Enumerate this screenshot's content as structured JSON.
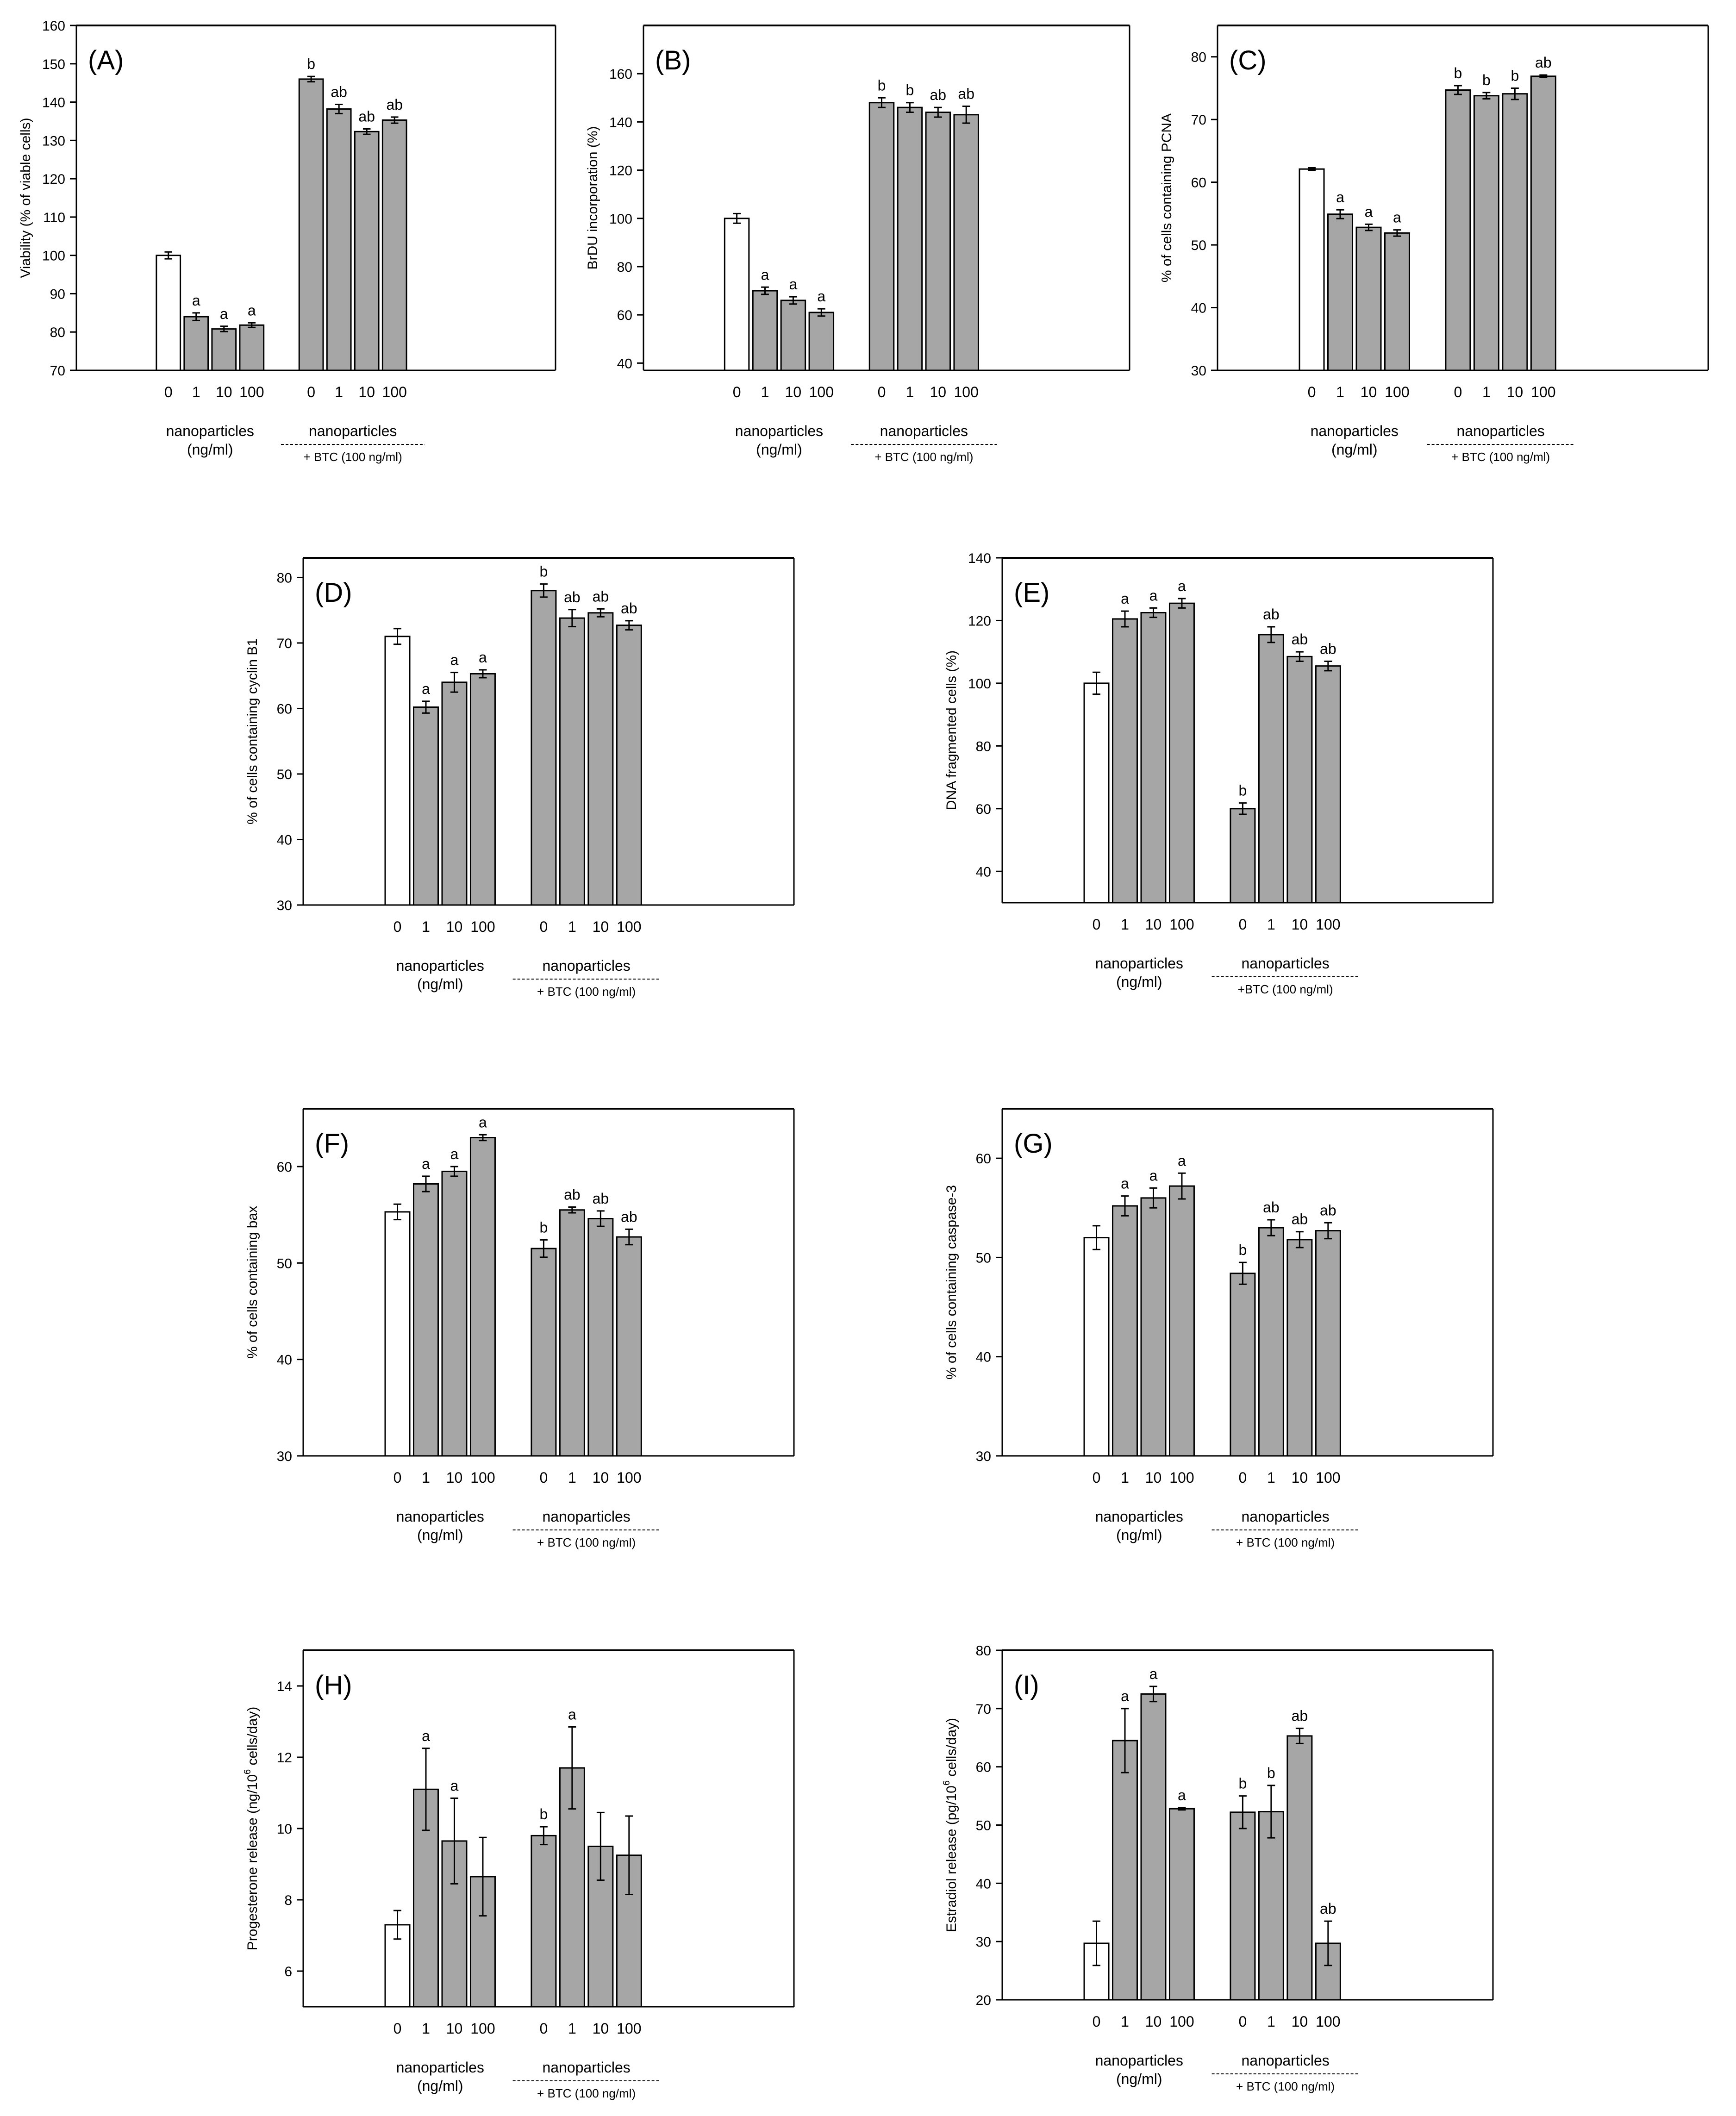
{
  "figure": {
    "description_note": "",
    "panels": [
      {
        "id": "A",
        "label": "(A)"
      },
      {
        "id": "B",
        "label": "(B)"
      },
      {
        "id": "C",
        "label": "(C)"
      },
      {
        "id": "D",
        "label": "(D)"
      },
      {
        "id": "E",
        "label": "(E)"
      },
      {
        "id": "F",
        "label": "(F)"
      },
      {
        "id": "G",
        "label": "(G)"
      },
      {
        "id": "H",
        "label": "(H)"
      },
      {
        "id": "I",
        "label": "(I)"
      }
    ]
  },
  "chart_data": [
    {
      "panel": "(A)",
      "type": "bar",
      "ylabel": "Viability (% of viable cells)",
      "ylim": [
        70,
        160
      ],
      "yticks": [
        70,
        80,
        90,
        100,
        110,
        120,
        130,
        140,
        150,
        160
      ],
      "categories": [
        "0",
        "1",
        "10",
        "100",
        "0",
        "1",
        "10",
        "100"
      ],
      "values": [
        100,
        84,
        80.8,
        81.8,
        146,
        138.2,
        132.3,
        135.3
      ],
      "errors": [
        0.9,
        1.0,
        0.7,
        0.6,
        0.7,
        1.2,
        0.7,
        0.8
      ],
      "letters": [
        "",
        "a",
        "a",
        "a",
        "b",
        "ab",
        "ab",
        "ab"
      ],
      "fills": [
        "#ffffff",
        "#a6a6a6",
        "#a6a6a6",
        "#a6a6a6",
        "#a6a6a6",
        "#a6a6a6",
        "#a6a6a6",
        "#a6a6a6"
      ],
      "group1_label": "nanoparticles",
      "group1_sub": "(ng/ml)",
      "group2_label": "nanoparticles",
      "group2_sub": "+ BTC (100 ng/ml)"
    },
    {
      "panel": "(B)",
      "type": "bar",
      "ylabel": "BrDU incorporation (%)",
      "ylim": [
        37,
        180
      ],
      "yticks": [
        40,
        60,
        80,
        100,
        120,
        140,
        160
      ],
      "categories": [
        "0",
        "1",
        "10",
        "100",
        "0",
        "1",
        "10",
        "100"
      ],
      "values": [
        100,
        70,
        66,
        61,
        148,
        146,
        144,
        143
      ],
      "errors": [
        2.0,
        1.5,
        1.5,
        1.5,
        2.0,
        2.0,
        2.0,
        3.5
      ],
      "letters": [
        "",
        "a",
        "a",
        "a",
        "b",
        "b",
        "ab",
        "ab"
      ],
      "fills": [
        "#ffffff",
        "#a6a6a6",
        "#a6a6a6",
        "#a6a6a6",
        "#a6a6a6",
        "#a6a6a6",
        "#a6a6a6",
        "#a6a6a6"
      ],
      "group1_label": "nanoparticles",
      "group1_sub": "(ng/ml)",
      "group2_label": "nanoparticles",
      "group2_sub": "+ BTC (100 ng/ml)"
    },
    {
      "panel": "(C)",
      "type": "bar",
      "ylabel": "% of cells containing PCNA",
      "ylim": [
        30,
        85
      ],
      "yticks": [
        30,
        40,
        50,
        60,
        70,
        80
      ],
      "categories": [
        "0",
        "1",
        "10",
        "100",
        "0",
        "1",
        "10",
        "100"
      ],
      "values": [
        62.1,
        54.9,
        52.8,
        51.9,
        74.7,
        73.8,
        74.1,
        76.9
      ],
      "errors": [
        0.2,
        0.7,
        0.5,
        0.5,
        0.7,
        0.5,
        0.9,
        0.2
      ],
      "letters": [
        "",
        "a",
        "a",
        "a",
        "b",
        "b",
        "b",
        "ab"
      ],
      "fills": [
        "#ffffff",
        "#a6a6a6",
        "#a6a6a6",
        "#a6a6a6",
        "#a6a6a6",
        "#a6a6a6",
        "#a6a6a6",
        "#a6a6a6"
      ],
      "group1_label": "nanoparticles",
      "group1_sub": "(ng/ml)",
      "group2_label": "nanoparticles",
      "group2_sub": "+ BTC (100 ng/ml)"
    },
    {
      "panel": "(D)",
      "type": "bar",
      "ylabel": "% of cells containing cyclin B1",
      "ylim": [
        30,
        83
      ],
      "yticks": [
        30,
        40,
        50,
        60,
        70,
        80
      ],
      "categories": [
        "0",
        "1",
        "10",
        "100",
        "0",
        "1",
        "10",
        "100"
      ],
      "values": [
        71,
        60.2,
        64,
        65.3,
        78,
        73.8,
        74.6,
        72.7
      ],
      "errors": [
        1.2,
        0.9,
        1.5,
        0.6,
        1.0,
        1.3,
        0.6,
        0.7
      ],
      "letters": [
        "",
        "a",
        "a",
        "a",
        "b",
        "ab",
        "ab",
        "ab"
      ],
      "fills": [
        "#ffffff",
        "#a6a6a6",
        "#a6a6a6",
        "#a6a6a6",
        "#a6a6a6",
        "#a6a6a6",
        "#a6a6a6",
        "#a6a6a6"
      ],
      "group1_label": "nanoparticles",
      "group1_sub": "(ng/ml)",
      "group2_label": "nanoparticles",
      "group2_sub": "+ BTC (100 ng/ml)"
    },
    {
      "panel": "(E)",
      "type": "bar",
      "ylabel": "DNA fragmented cells (%)",
      "ylim": [
        30,
        140
      ],
      "yticks": [
        40,
        60,
        80,
        100,
        120,
        140
      ],
      "categories": [
        "0",
        "1",
        "10",
        "100",
        "0",
        "1",
        "10",
        "100"
      ],
      "values": [
        100,
        120.5,
        122.5,
        125.5,
        60,
        115.5,
        108.5,
        105.5
      ],
      "errors": [
        3.5,
        2.5,
        1.5,
        1.5,
        1.8,
        2.5,
        1.5,
        1.5
      ],
      "letters": [
        "",
        "a",
        "a",
        "a",
        "b",
        "ab",
        "ab",
        "ab"
      ],
      "fills": [
        "#ffffff",
        "#a6a6a6",
        "#a6a6a6",
        "#a6a6a6",
        "#a6a6a6",
        "#a6a6a6",
        "#a6a6a6",
        "#a6a6a6"
      ],
      "group1_label": "nanoparticles",
      "group1_sub": "(ng/ml)",
      "group2_label": "nanoparticles",
      "group2_sub": "+BTC (100 ng/ml)"
    },
    {
      "panel": "(F)",
      "type": "bar",
      "ylabel": "% of cells containing bax",
      "ylim": [
        30,
        66
      ],
      "yticks": [
        30,
        40,
        50,
        60
      ],
      "categories": [
        "0",
        "1",
        "10",
        "100",
        "0",
        "1",
        "10",
        "100"
      ],
      "values": [
        55.3,
        58.2,
        59.5,
        63,
        51.5,
        55.5,
        54.6,
        52.7
      ],
      "errors": [
        0.8,
        0.8,
        0.5,
        0.3,
        0.9,
        0.3,
        0.8,
        0.8
      ],
      "letters": [
        "",
        "a",
        "a",
        "a",
        "b",
        "ab",
        "ab",
        "ab"
      ],
      "fills": [
        "#ffffff",
        "#a6a6a6",
        "#a6a6a6",
        "#a6a6a6",
        "#a6a6a6",
        "#a6a6a6",
        "#a6a6a6",
        "#a6a6a6"
      ],
      "group1_label": "nanoparticles",
      "group1_sub": "(ng/ml)",
      "group2_label": "nanoparticles",
      "group2_sub": "+ BTC (100 ng/ml)"
    },
    {
      "panel": "(G)",
      "type": "bar",
      "ylabel": "% of cells containing caspase-3",
      "ylim": [
        30,
        65
      ],
      "yticks": [
        30,
        40,
        50,
        60
      ],
      "categories": [
        "0",
        "1",
        "10",
        "100",
        "0",
        "1",
        "10",
        "100"
      ],
      "values": [
        52,
        55.2,
        56,
        57.2,
        48.4,
        53,
        51.8,
        52.7
      ],
      "errors": [
        1.2,
        1.0,
        1.0,
        1.3,
        1.1,
        0.8,
        0.8,
        0.8
      ],
      "letters": [
        "",
        "a",
        "a",
        "a",
        "b",
        "ab",
        "ab",
        "ab"
      ],
      "fills": [
        "#ffffff",
        "#a6a6a6",
        "#a6a6a6",
        "#a6a6a6",
        "#a6a6a6",
        "#a6a6a6",
        "#a6a6a6",
        "#a6a6a6"
      ],
      "group1_label": "nanoparticles",
      "group1_sub": "(ng/ml)",
      "group2_label": "nanoparticles",
      "group2_sub": "+ BTC (100 ng/ml)"
    },
    {
      "panel": "(H)",
      "type": "bar",
      "ylabel": "Progesterone release (ng/10",
      "ylabel_sup": "6",
      "ylabel_tail": " cells/day)",
      "ylim": [
        5,
        15
      ],
      "yticks": [
        6,
        8,
        10,
        12,
        14
      ],
      "categories": [
        "0",
        "1",
        "10",
        "100",
        "0",
        "1",
        "10",
        "100"
      ],
      "values": [
        7.3,
        11.1,
        9.65,
        8.65,
        9.8,
        11.7,
        9.5,
        9.25
      ],
      "errors": [
        0.4,
        1.15,
        1.2,
        1.1,
        0.25,
        1.15,
        0.95,
        1.1
      ],
      "letters": [
        "",
        "a",
        "a",
        "",
        "b",
        "a",
        "",
        ""
      ],
      "fills": [
        "#ffffff",
        "#a6a6a6",
        "#a6a6a6",
        "#a6a6a6",
        "#a6a6a6",
        "#a6a6a6",
        "#a6a6a6",
        "#a6a6a6"
      ],
      "group1_label": "nanoparticles",
      "group1_sub": "(ng/ml)",
      "group2_label": "nanoparticles",
      "group2_sub": "+ BTC (100 ng/ml)"
    },
    {
      "panel": "(I)",
      "type": "bar",
      "ylabel": "Estradiol release (pg/10",
      "ylabel_sup": "6",
      "ylabel_tail": " cells/day)",
      "ylim": [
        20,
        80
      ],
      "yticks": [
        20,
        30,
        40,
        50,
        60,
        70,
        80
      ],
      "categories": [
        "0",
        "1",
        "10",
        "100",
        "0",
        "1",
        "10",
        "100"
      ],
      "values": [
        29.7,
        64.5,
        72.5,
        52.8,
        52.2,
        52.3,
        65.3,
        29.7
      ],
      "errors": [
        3.8,
        5.5,
        1.3,
        0.2,
        2.8,
        4.5,
        1.3,
        3.8
      ],
      "letters": [
        "",
        "a",
        "a",
        "a",
        "b",
        "b",
        "ab",
        "ab"
      ],
      "fills": [
        "#ffffff",
        "#a6a6a6",
        "#a6a6a6",
        "#a6a6a6",
        "#a6a6a6",
        "#a6a6a6",
        "#a6a6a6",
        "#a6a6a6"
      ],
      "group1_label": "nanoparticles",
      "group1_sub": "(ng/ml)",
      "group2_label": "nanoparticles",
      "group2_sub": "+ BTC (100 ng/ml)"
    }
  ]
}
